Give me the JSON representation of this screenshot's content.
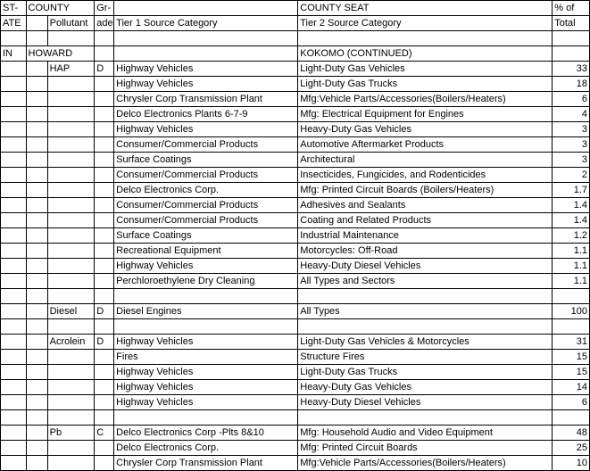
{
  "header": {
    "state_top": "ST-",
    "state_bot": "ATE",
    "county": "COUNTY",
    "pollutant": "Pollutant",
    "grade_top": "Gr-",
    "grade_bot": "ade",
    "tier1": "Tier 1 Source Category",
    "countyseat": "COUNTY SEAT",
    "tier2": "Tier 2 Source Category",
    "pct_top": "% of",
    "pct_bot": "Total"
  },
  "rows": [
    {
      "state": "",
      "county": "",
      "pollutant": "",
      "grade": "",
      "tier1": "",
      "tier2": "",
      "pct": ""
    },
    {
      "state": "IN",
      "county": "HOWARD",
      "pollutant": "",
      "grade": "",
      "tier1": "",
      "tier2": "KOKOMO (CONTINUED)",
      "pct": ""
    },
    {
      "state": "",
      "county": "",
      "pollutant": "HAP",
      "grade": "D",
      "tier1": "Highway Vehicles",
      "tier2": "Light-Duty Gas Vehicles",
      "pct": "33"
    },
    {
      "state": "",
      "county": "",
      "pollutant": "",
      "grade": "",
      "tier1": "Highway Vehicles",
      "tier2": "Light-Duty Gas Trucks",
      "pct": "18"
    },
    {
      "state": "",
      "county": "",
      "pollutant": "",
      "grade": "",
      "tier1": "Chrysler Corp Transmission Plant",
      "tier2": "Mfg:Vehicle Parts/Accessories(Boilers/Heaters)",
      "pct": "6"
    },
    {
      "state": "",
      "county": "",
      "pollutant": "",
      "grade": "",
      "tier1": "Delco Electronics Plants 6-7-9",
      "tier2": "Mfg: Electrical Equipment for Engines",
      "pct": "4"
    },
    {
      "state": "",
      "county": "",
      "pollutant": "",
      "grade": "",
      "tier1": "Highway Vehicles",
      "tier2": "Heavy-Duty Gas Vehicles",
      "pct": "3"
    },
    {
      "state": "",
      "county": "",
      "pollutant": "",
      "grade": "",
      "tier1": "Consumer/Commercial Products",
      "tier2": "Automotive Aftermarket Products",
      "pct": "3"
    },
    {
      "state": "",
      "county": "",
      "pollutant": "",
      "grade": "",
      "tier1": "Surface Coatings",
      "tier2": "Architectural",
      "pct": "3"
    },
    {
      "state": "",
      "county": "",
      "pollutant": "",
      "grade": "",
      "tier1": "Consumer/Commercial Products",
      "tier2": "Insecticides, Fungicides, and Rodenticides",
      "pct": "2"
    },
    {
      "state": "",
      "county": "",
      "pollutant": "",
      "grade": "",
      "tier1": "Delco Electronics Corp.",
      "tier2": "Mfg: Printed Circuit Boards (Boilers/Heaters)",
      "pct": "1.7"
    },
    {
      "state": "",
      "county": "",
      "pollutant": "",
      "grade": "",
      "tier1": "Consumer/Commercial Products",
      "tier2": "Adhesives and Sealants",
      "pct": "1.4"
    },
    {
      "state": "",
      "county": "",
      "pollutant": "",
      "grade": "",
      "tier1": "Consumer/Commercial Products",
      "tier2": "Coating and Related Products",
      "pct": "1.4"
    },
    {
      "state": "",
      "county": "",
      "pollutant": "",
      "grade": "",
      "tier1": "Surface Coatings",
      "tier2": "Industrial Maintenance",
      "pct": "1.2"
    },
    {
      "state": "",
      "county": "",
      "pollutant": "",
      "grade": "",
      "tier1": "Recreational Equipment",
      "tier2": "Motorcycles: Off-Road",
      "pct": "1.1"
    },
    {
      "state": "",
      "county": "",
      "pollutant": "",
      "grade": "",
      "tier1": "Highway Vehicles",
      "tier2": "Heavy-Duty Diesel Vehicles",
      "pct": "1.1"
    },
    {
      "state": "",
      "county": "",
      "pollutant": "",
      "grade": "",
      "tier1": "Perchloroethylene Dry Cleaning",
      "tier2": "All Types and Sectors",
      "pct": "1.1"
    },
    {
      "state": "",
      "county": "",
      "pollutant": "",
      "grade": "",
      "tier1": "",
      "tier2": "",
      "pct": ""
    },
    {
      "state": "",
      "county": "",
      "pollutant": "Diesel",
      "grade": "D",
      "tier1": "Diesel Engines",
      "tier2": "All Types",
      "pct": "100"
    },
    {
      "state": "",
      "county": "",
      "pollutant": "",
      "grade": "",
      "tier1": "",
      "tier2": "",
      "pct": ""
    },
    {
      "state": "",
      "county": "",
      "pollutant": "Acrolein",
      "grade": "D",
      "tier1": "Highway Vehicles",
      "tier2": "Light-Duty Gas Vehicles & Motorcycles",
      "pct": "31"
    },
    {
      "state": "",
      "county": "",
      "pollutant": "",
      "grade": "",
      "tier1": "Fires",
      "tier2": "Structure Fires",
      "pct": "15"
    },
    {
      "state": "",
      "county": "",
      "pollutant": "",
      "grade": "",
      "tier1": "Highway Vehicles",
      "tier2": "Light-Duty Gas Trucks",
      "pct": "15"
    },
    {
      "state": "",
      "county": "",
      "pollutant": "",
      "grade": "",
      "tier1": "Highway Vehicles",
      "tier2": "Heavy-Duty Gas Vehicles",
      "pct": "14"
    },
    {
      "state": "",
      "county": "",
      "pollutant": "",
      "grade": "",
      "tier1": "Highway Vehicles",
      "tier2": "Heavy-Duty Diesel Vehicles",
      "pct": "6"
    },
    {
      "state": "",
      "county": "",
      "pollutant": "",
      "grade": "",
      "tier1": "",
      "tier2": "",
      "pct": ""
    },
    {
      "state": "",
      "county": "",
      "pollutant": "Pb",
      "grade": "C",
      "tier1": "Delco Electronics Corp -Plts 8&10",
      "tier2": "Mfg: Household Audio and Video Equipment",
      "pct": "48"
    },
    {
      "state": "",
      "county": "",
      "pollutant": "",
      "grade": "",
      "tier1": "Delco Electronics Corp.",
      "tier2": "Mfg: Printed Circuit Boards",
      "pct": "25"
    },
    {
      "state": "",
      "county": "",
      "pollutant": "",
      "grade": "",
      "tier1": "Chrysler Corp Transmission Plant",
      "tier2": "Mfg:Vehicle Parts/Accessories(Boilers/Heaters)",
      "pct": "10"
    }
  ]
}
